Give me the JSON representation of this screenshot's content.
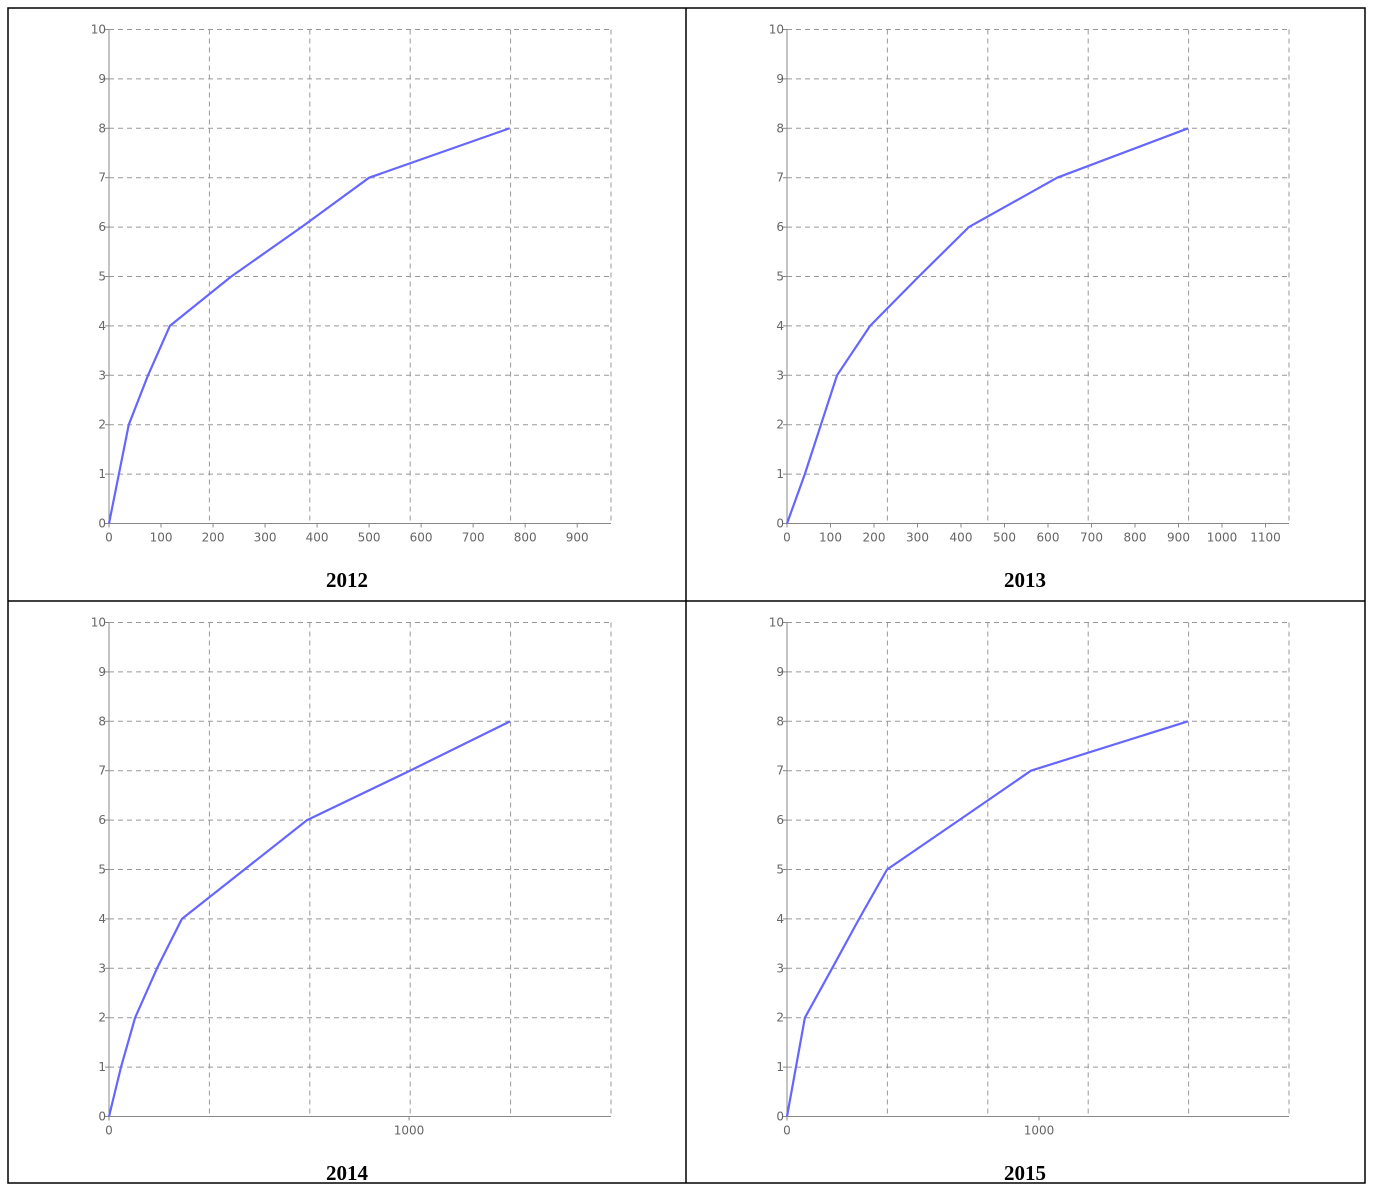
{
  "chart_data": [
    {
      "type": "line",
      "title": "2012",
      "color": "#6666ff",
      "grid": true,
      "x": [
        0,
        38,
        75,
        117,
        235,
        370,
        500,
        770
      ],
      "values": [
        0,
        2,
        3,
        4,
        5,
        6,
        7,
        8
      ],
      "xlim": [
        0,
        965
      ],
      "xticks": [
        0,
        100,
        200,
        300,
        400,
        500,
        600,
        700,
        800,
        900
      ],
      "ylim": [
        0,
        10
      ],
      "yticks": [
        0,
        1,
        2,
        3,
        4,
        5,
        6,
        7,
        8,
        9,
        10
      ]
    },
    {
      "type": "line",
      "title": "2013",
      "color": "#6666ff",
      "grid": true,
      "x": [
        0,
        41,
        78,
        115,
        191,
        303,
        418,
        621,
        922
      ],
      "values": [
        0,
        1,
        2,
        3,
        4,
        5,
        6,
        7,
        8
      ],
      "xlim": [
        0,
        1154
      ],
      "xticks": [
        0,
        100,
        200,
        300,
        400,
        500,
        600,
        700,
        800,
        900,
        1000,
        1100
      ],
      "ylim": [
        0,
        10
      ],
      "yticks": [
        0,
        1,
        2,
        3,
        4,
        5,
        6,
        7,
        8,
        9,
        10
      ]
    },
    {
      "type": "line",
      "title": "2014",
      "color": "#6666ff",
      "grid": true,
      "x": [
        0,
        40,
        87,
        160,
        243,
        660,
        1003,
        1337
      ],
      "values": [
        0,
        1,
        2,
        3,
        4,
        6,
        7,
        8
      ],
      "xlim": [
        0,
        1673
      ],
      "xticks": [
        0,
        1000
      ],
      "ylim": [
        0,
        10
      ],
      "yticks": [
        0,
        1,
        2,
        3,
        4,
        5,
        6,
        7,
        8,
        9,
        10
      ]
    },
    {
      "type": "line",
      "title": "2015",
      "color": "#6666ff",
      "grid": true,
      "x": [
        0,
        71,
        179,
        286,
        397,
        683,
        968,
        1591
      ],
      "values": [
        0,
        2,
        3,
        4,
        5,
        6,
        7,
        8
      ],
      "xlim": [
        0,
        1992
      ],
      "xticks": [
        0,
        1000
      ],
      "ylim": [
        0,
        10
      ],
      "yticks": [
        0,
        1,
        2,
        3,
        4,
        5,
        6,
        7,
        8,
        9,
        10
      ]
    }
  ]
}
